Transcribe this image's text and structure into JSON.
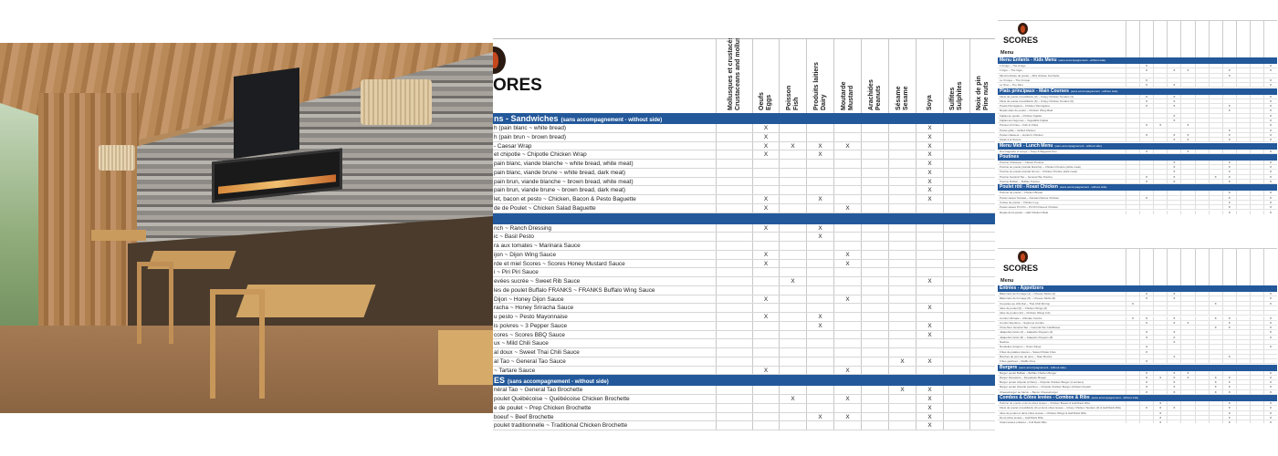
{
  "middle_table": {
    "logo_text": "ORES",
    "columns": [
      "Mollusques et crustacés\nCrustaceans and molluscs",
      "Oeufs\nEggs",
      "Poisson\nFish",
      "Produits laitiers\nDairy",
      "Moutarde\nMustard",
      "Arachides\nPeanuts",
      "Sésame\nSesame",
      "Soya",
      "Sulfites\nSulphites",
      "Noix de pin\nPine nuts"
    ],
    "sections": [
      {
        "title": "ns - Sandwiches",
        "note": "(sans accompagnement - without side)",
        "rows": [
          {
            "name": "h (pain blanc ~ white bread)",
            "marks": [
              1,
              7
            ]
          },
          {
            "name": "h (pain brun ~ brown bread)",
            "marks": [
              1,
              7
            ]
          },
          {
            "name": "- Caesar Wrap",
            "marks": [
              1,
              2,
              3,
              4,
              7
            ]
          },
          {
            "name": "et chipotle ~ Chipotle Chicken Wrap",
            "marks": [
              1,
              3,
              7
            ]
          },
          {
            "name": "pain blanc, viande blanche ~ white bread, white meat)",
            "marks": [
              7
            ]
          },
          {
            "name": "pain blanc, viande brune ~ white bread, dark meat)",
            "marks": [
              7
            ]
          },
          {
            "name": "pain brun, viande blanche ~ brown bread, white meat)",
            "marks": [
              7
            ]
          },
          {
            "name": "pain brun, viande brune ~ brown bread, dark meat)",
            "marks": [
              7
            ]
          },
          {
            "name": "let, bacon et pesto ~ Chicken, Bacon & Pesto Baguette",
            "marks": [
              1,
              3,
              7
            ]
          },
          {
            "name": "de de Poulet ~ Chicken Salad Baguette",
            "marks": [
              1,
              4
            ]
          }
        ]
      },
      {
        "title": "",
        "note": "",
        "rows": [
          {
            "name": "nch ~ Ranch Dressing",
            "marks": [
              1,
              3
            ]
          },
          {
            "name": "ic ~ Basil Pesto",
            "marks": [
              3
            ]
          },
          {
            "name": "ra aux tomates ~ Marinara Sauce",
            "marks": []
          },
          {
            "name": "ijon ~ Dijon Wing Sauce",
            "marks": [
              1,
              4
            ]
          },
          {
            "name": "rde et miel Scores ~ Scores Honey Mustard Sauce",
            "marks": [
              1,
              4
            ]
          },
          {
            "name": "i ~ Piri Piri Sauce",
            "marks": []
          },
          {
            "name": "evées sucrée ~ Sweet Rib Sauce",
            "marks": [
              2,
              7
            ]
          },
          {
            "name": "les de poulet Buffalo FRANKS ~ FRANKS Buffalo Wing Sauce",
            "marks": []
          },
          {
            "name": " Dijon ~ Honey Dijon Sauce",
            "marks": [
              1,
              4
            ]
          },
          {
            "name": "racha ~ Honey Sriracha Sauce",
            "marks": [
              7
            ]
          },
          {
            "name": "u pesto ~ Pesto Mayonnaise",
            "marks": [
              1,
              3
            ]
          },
          {
            "name": "is poivres ~ 3 Pepper Sauce",
            "marks": [
              3,
              7
            ]
          },
          {
            "name": "cores ~ Scores BBQ Sauce",
            "marks": [
              7
            ]
          },
          {
            "name": "ux ~ Mild Chili Sauce",
            "marks": []
          },
          {
            "name": "al doux ~ Sweet Thai Chili Sauce",
            "marks": []
          },
          {
            "name": "al Tao ~ General Tao Sauce",
            "marks": [
              6,
              7
            ]
          },
          {
            "name": " ~ Tartare Sauce",
            "marks": [
              1,
              4
            ]
          }
        ]
      },
      {
        "title": "ES",
        "note": "(sans accompagnement - without side)",
        "rows": [
          {
            "name": "néral Tao ~ General Tao Brochette",
            "marks": [
              6,
              7
            ]
          },
          {
            "name": "poulet Québécoise ~ Québécoise Chicken Brochette",
            "marks": [
              2,
              4,
              7
            ]
          },
          {
            "name": "e de poulet ~ Prep Chicken Brochette",
            "marks": [
              7
            ]
          },
          {
            "name": "boeuf ~ Beef Brochette",
            "marks": [
              3,
              4,
              7
            ]
          },
          {
            "name": "poulet traditionnelle ~ Traditional Chicken Brochette",
            "marks": [
              7
            ]
          }
        ]
      }
    ],
    "mark": "X"
  },
  "thumbnails": [
    {
      "logo_text": "SCORES",
      "menu_label": "Menu",
      "sections": [
        {
          "title": "Menu Enfants - Kids Menu",
          "note": "(sans accompagnement - without side)",
          "rows": [
            {
              "name": "L'Amigo ~ The Amigo",
              "marks": [
                1,
                10
              ]
            },
            {
              "name": "L'Ogre ~ The Ogre",
              "marks": [
                1,
                3,
                4,
                7,
                10
              ]
            },
            {
              "name": "Mini-brochette de poulet ~ Mini chicken brochette",
              "marks": [
                7
              ]
            },
            {
              "name": "Le Croque ~ The Croque",
              "marks": [
                1,
                10
              ]
            },
            {
              "name": "Le Nino ~ The Nino",
              "marks": [
                1,
                3,
                10
              ]
            }
          ]
        },
        {
          "title": "Plats principaux - Main Courses",
          "note": "(sans accompagnement - without side)",
          "rows": [
            {
              "name": "Filets de poulet croustillants (3) ~ Crispy Chicken Tenders (3)",
              "marks": [
                1,
                3,
                10
              ]
            },
            {
              "name": "Filets de poulet croustillants (5) ~ Crispy Chicken Tenders (5)",
              "marks": [
                1,
                3,
                10
              ]
            },
            {
              "name": "Poulet Parmigiana ~ Chicken Parmigiana",
              "marks": [
                1,
                3,
                7,
                10
              ]
            },
            {
              "name": "Repas ailes de poulet ~ Chicken Wing Meal",
              "marks": [
                7,
                10
              ]
            },
            {
              "name": "Fajitas au poulet ~ Chicken Fajitas",
              "marks": [
                3,
                10
              ]
            },
            {
              "name": "Fajitas aux légumes ~ Vegetable Fajitas",
              "marks": [
                3,
                10
              ]
            },
            {
              "name": "Poisson & Frites ~ Fish & Chips",
              "marks": [
                1,
                2,
                4,
                10
              ]
            },
            {
              "name": "Poulet grillé ~ Grilled Chicken",
              "marks": [
                7,
                10
              ]
            },
            {
              "name": "Poulet chasseur ~ Hunter's Chicken",
              "marks": [
                1,
                3,
                4,
                7,
                10
              ]
            },
            {
              "name": "Steak à la Scores",
              "marks": [
                3,
                4,
                7,
                10
              ]
            }
          ]
        },
        {
          "title": "Menu Midi - Lunch Menu",
          "note": "(sans accompagnement - without side)",
          "rows": [
            {
              "name": "Duo baguette et soupe ~ Soup & Baguette Duo",
              "marks": [
                1,
                4,
                10
              ]
            }
          ]
        },
        {
          "title": "Poutines",
          "note": "",
          "rows": [
            {
              "name": "Poutine Classique ~ Classic Poutine",
              "marks": [
                3,
                7,
                10
              ]
            },
            {
              "name": "Poutine au poulet (viande blanche) ~ Chicken Poutine (white meat)",
              "marks": [
                3,
                7,
                10
              ]
            },
            {
              "name": "Poutine au poulet (viande brune) ~ Chicken Poutine (dark meat)",
              "marks": [
                3,
                7,
                10
              ]
            },
            {
              "name": "Poutine Général Tao ~ General Tao Poutine",
              "marks": [
                1,
                3,
                6,
                7,
                10
              ]
            },
            {
              "name": "Poutine Buffalo ~ Buffalo Poutine",
              "marks": [
                1,
                3,
                7,
                10
              ]
            }
          ]
        },
        {
          "title": "Poulet rôti - Roast Chicken",
          "note": "(sans accompagnement - without side)",
          "rows": [
            {
              "name": "Poitrine de poulet ~ Chicken Breast",
              "marks": [
                7,
                10
              ]
            },
            {
              "name": "Poulet saveur Kansas ~ Kansas Flavour Chicken",
              "marks": [
                1,
                7,
                10
              ]
            },
            {
              "name": "Cuisse de poulet ~ Chicken Leg",
              "marks": [
                7,
                10
              ]
            },
            {
              "name": "Poulet saveur Piri Piri ~ Piri Piri Flavour Chicken",
              "marks": [
                7,
                10
              ]
            },
            {
              "name": "Repas demi-poulet ~ Half Chicken Meal",
              "marks": [
                7,
                10
              ]
            },
            {
              "name": "Poulet saveur Montréalais ~ Montrealaise Flavour Chicken",
              "marks": [
                2,
                4,
                7,
                10
              ]
            },
            {
              "name": "Poulet saveur Miel et Sriracha ~ Honey Sriracha Flavour Chicken",
              "marks": [
                7,
                10
              ]
            },
            {
              "name": "Repas deux cuisses ~ Two Chicken Leg Meal",
              "marks": [
                7,
                10
              ]
            }
          ]
        }
      ]
    },
    {
      "logo_text": "SCORES",
      "menu_label": "Menu",
      "sections": [
        {
          "title": "Entrées - Appetizers",
          "note": "",
          "rows": [
            {
              "name": "Bâtonnets de fromage (4) ~ Cheese Sticks (4)",
              "marks": [
                1,
                3,
                10
              ]
            },
            {
              "name": "Bâtonnets de fromage (8) ~ Cheese Sticks (8)",
              "marks": [
                1,
                3,
                10
              ]
            },
            {
              "name": "Crevettes au chili thaï ~ Thai Chili Shrimp",
              "marks": [
                0,
                6,
                10
              ]
            },
            {
              "name": "Ailes de poulet (6) ~ Chicken Wings (6)",
              "marks": []
            },
            {
              "name": "Ailes de poulet (12) ~ Chicken Wings (12)",
              "marks": []
            },
            {
              "name": "Combo Ultimate ~ Ultimate Combo",
              "marks": [
                0,
                1,
                3,
                6,
                7,
                10
              ]
            },
            {
              "name": "Combo Suprême ~ Supreme Combo",
              "marks": [
                1,
                3,
                4,
                7,
                10
              ]
            },
            {
              "name": "Chou-fleur Général Tao ~ General Tao Cauliflower",
              "marks": [
                6,
                7,
                10
              ]
            },
            {
              "name": "Jalapeños farcis (4) ~ Jalapeño Poppers (4)",
              "marks": [
                1,
                3,
                10
              ]
            },
            {
              "name": "Jalapeños farcis (8) ~ Jalapeño Poppers (8)",
              "marks": [
                1,
                3,
                10
              ]
            },
            {
              "name": "Nachos",
              "marks": [
                3
              ]
            },
            {
              "name": "Rondelles d'oignon ~ Onion Rings",
              "marks": [
                1,
                10
              ]
            },
            {
              "name": "Frites de patates douces ~ Sweet Potato Fries",
              "marks": [
                1
              ]
            },
            {
              "name": "Bombes de pomme de terre ~ Tater Bombs",
              "marks": [
                3,
                7
              ]
            },
            {
              "name": "Frites gaufrées ~ Waffle Fries",
              "marks": [
                1
              ]
            }
          ]
        },
        {
          "title": "Burgers",
          "note": "(sans accompagnement - without side)",
          "rows": [
            {
              "name": "Burger poulet Buffalo ~ Buffalo Chicken Burger",
              "marks": [
                1,
                3,
                4,
                10
              ]
            },
            {
              "name": "Burger Dévastant ~ Devastator Burger",
              "marks": [
                1,
                2,
                3,
                4,
                6,
                7,
                10
              ]
            },
            {
              "name": "Burger poulet chipotle (2 filets) ~ Chipotle Chicken Burger (2 tenders)",
              "marks": [
                1,
                3,
                6,
                7,
                10
              ]
            },
            {
              "name": "Burger poulet chipotle (poitrine) ~ Chipotle Chicken Burger (chicken breast)",
              "marks": [
                1,
                3,
                6,
                7,
                10
              ]
            },
            {
              "name": "Cheeseburger au bacon ~ Bacon Cheeseburger",
              "marks": [
                1,
                3,
                6,
                7,
                10
              ]
            }
          ]
        },
        {
          "title": "Combos & Côtes levées - Combos & Ribs",
          "note": "(sans accompagnement - without side)",
          "rows": [
            {
              "name": "Poitrine de poulet et demi-côtes levées ~ Chicken Breast & Half Rack Ribs",
              "marks": [
                2,
                7,
                10
              ]
            },
            {
              "name": "Filets de poulet croustillants (3) et demi-côtes levées ~ Crispy Chicken Tenders (3) & Half Rack Ribs",
              "marks": [
                1,
                2,
                3,
                7,
                10
              ]
            },
            {
              "name": "Ailes de poulet et demi-côtes levées ~ Chicken Wings & Half Rack Ribs",
              "marks": [
                2,
                7,
                10
              ]
            },
            {
              "name": "Demi-côtes levées ~ Half Rack Ribs",
              "marks": [
                2,
                7,
                10
              ]
            },
            {
              "name": "Côtes levées entières ~ Full Rack Ribs",
              "marks": [
                2,
                7,
                10
              ]
            },
            {
              "name": "Quart de poulet (cuisse) et demi-côtes levées ~ Quarter Chicken (Leg) & Half Rack Ribs",
              "marks": [
                2,
                7,
                10
              ]
            },
            {
              "name": "Quart de poulet (poitrine) et demi-côtes levées ~ Quarter Chicken (Breast) & Half Rack Ribs",
              "marks": [
                2,
                7,
                10
              ]
            }
          ]
        }
      ]
    }
  ],
  "colors": {
    "section_bar": "#23589a",
    "logo_flame": "#c5471c"
  }
}
